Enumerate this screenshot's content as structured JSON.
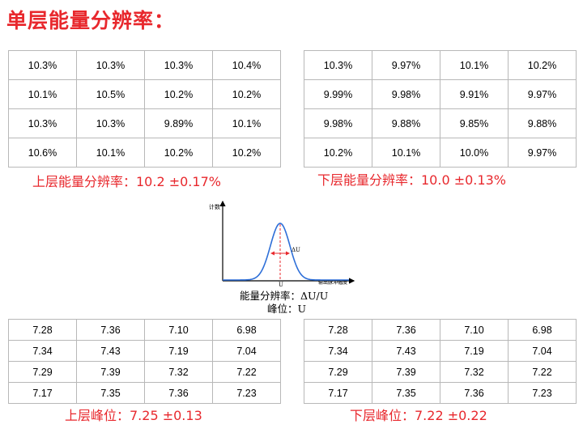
{
  "title": "单层能量分辨率：",
  "resolution_table": {
    "rows": [
      [
        "10.3%",
        "10.3%",
        "10.3%",
        "10.4%",
        "10.3%",
        "9.97%",
        "10.1%",
        "10.2%"
      ],
      [
        "10.1%",
        "10.5%",
        "10.2%",
        "10.2%",
        "9.99%",
        "9.98%",
        "9.91%",
        "9.97%"
      ],
      [
        "10.3%",
        "10.3%",
        "9.89%",
        "10.1%",
        "9.98%",
        "9.88%",
        "9.85%",
        "9.88%"
      ],
      [
        "10.6%",
        "10.1%",
        "10.2%",
        "10.2%",
        "10.2%",
        "10.1%",
        "10.0%",
        "9.97%"
      ]
    ]
  },
  "upper_resolution_caption": "上层能量分辨率：10.2 ±0.17%",
  "lower_resolution_caption": "下层能量分辨率：10.0 ±0.13%",
  "diagram": {
    "y_axis_label": "计数",
    "x_axis_label": "输出脉冲幅度",
    "delta_label": "ΔU",
    "peak_label": "U",
    "curve_color": "#2e6fd8",
    "arrow_color": "#e8282d"
  },
  "formula": {
    "line1": "能量分辨率：ΔU/U",
    "line2": "峰位：U"
  },
  "peak_table": {
    "rows": [
      [
        "7.28",
        "7.36",
        "7.10",
        "6.98",
        "7.28",
        "7.36",
        "7.10",
        "6.98"
      ],
      [
        "7.34",
        "7.43",
        "7.19",
        "7.04",
        "7.34",
        "7.43",
        "7.19",
        "7.04"
      ],
      [
        "7.29",
        "7.39",
        "7.32",
        "7.22",
        "7.29",
        "7.39",
        "7.32",
        "7.22"
      ],
      [
        "7.17",
        "7.35",
        "7.36",
        "7.23",
        "7.17",
        "7.35",
        "7.36",
        "7.23"
      ]
    ]
  },
  "upper_peak_caption": "上层峰位：7.25 ±0.13",
  "lower_peak_caption": "下层峰位：7.22 ±0.22"
}
